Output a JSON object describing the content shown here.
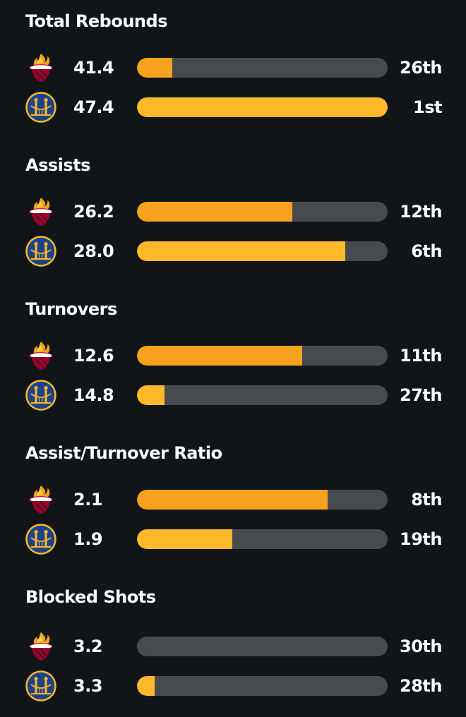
{
  "colors": {
    "background": "#111518",
    "bar_track": "#474b50",
    "heat_fill": "#f6a21e",
    "warriors_fill": "#fdb927",
    "text": "#ffffff"
  },
  "teams": [
    {
      "key": "heat",
      "icon": "heat-logo-icon"
    },
    {
      "key": "warriors",
      "icon": "warriors-logo-icon"
    }
  ],
  "stats": [
    {
      "title": "Total Rebounds",
      "rows": [
        {
          "team": "heat",
          "value": "41.4",
          "rank": "26th",
          "fill_fraction": 0.14
        },
        {
          "team": "warriors",
          "value": "47.4",
          "rank": "1st",
          "fill_fraction": 1.0
        }
      ]
    },
    {
      "title": "Assists",
      "rows": [
        {
          "team": "heat",
          "value": "26.2",
          "rank": "12th",
          "fill_fraction": 0.62
        },
        {
          "team": "warriors",
          "value": "28.0",
          "rank": "6th",
          "fill_fraction": 0.83
        }
      ]
    },
    {
      "title": "Turnovers",
      "rows": [
        {
          "team": "heat",
          "value": "12.6",
          "rank": "11th",
          "fill_fraction": 0.66
        },
        {
          "team": "warriors",
          "value": "14.8",
          "rank": "27th",
          "fill_fraction": 0.11
        }
      ]
    },
    {
      "title": "Assist/Turnover Ratio",
      "rows": [
        {
          "team": "heat",
          "value": "2.1",
          "rank": "8th",
          "fill_fraction": 0.76
        },
        {
          "team": "warriors",
          "value": "1.9",
          "rank": "19th",
          "fill_fraction": 0.38
        }
      ]
    },
    {
      "title": "Blocked Shots",
      "rows": [
        {
          "team": "heat",
          "value": "3.2",
          "rank": "30th",
          "fill_fraction": 0.0
        },
        {
          "team": "warriors",
          "value": "3.3",
          "rank": "28th",
          "fill_fraction": 0.07
        }
      ]
    }
  ]
}
